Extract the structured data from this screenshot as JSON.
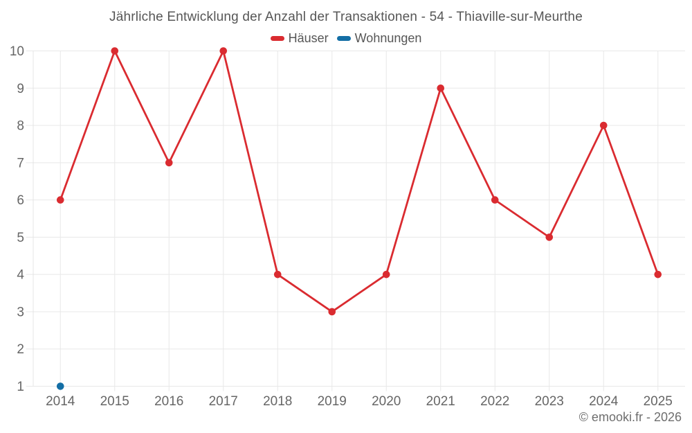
{
  "title": "Jährliche Entwicklung der Anzahl der Transaktionen - 54 - Thiaville-sur-Meurthe",
  "copyright": "© emooki.fr - 2026",
  "colors": {
    "title_text": "#565656",
    "axis_text": "#666666",
    "grid": "#e8e8e8",
    "axis_line": "#e4e4e4",
    "series_red": "#da2b30",
    "series_blue": "#136ea5",
    "background": "#ffffff"
  },
  "chart_data": {
    "type": "line",
    "title": "Jährliche Entwicklung der Anzahl der Transaktionen - 54 - Thiaville-sur-Meurthe",
    "categories": [
      "2014",
      "2015",
      "2016",
      "2017",
      "2018",
      "2019",
      "2020",
      "2021",
      "2022",
      "2023",
      "2024",
      "2025"
    ],
    "series": [
      {
        "name": "Häuser",
        "color": "#da2b30",
        "values": [
          6,
          10,
          7,
          10,
          4,
          3,
          4,
          9,
          6,
          5,
          8,
          4
        ]
      },
      {
        "name": "Wohnungen",
        "color": "#136ea5",
        "values": [
          1,
          null,
          null,
          null,
          null,
          null,
          null,
          null,
          null,
          null,
          null,
          null
        ]
      }
    ],
    "xlabel": "",
    "ylabel": "",
    "ylim": [
      1,
      10
    ],
    "yticks": [
      1,
      2,
      3,
      4,
      5,
      6,
      7,
      8,
      9,
      10
    ],
    "grid": true,
    "legend_position": "top"
  }
}
